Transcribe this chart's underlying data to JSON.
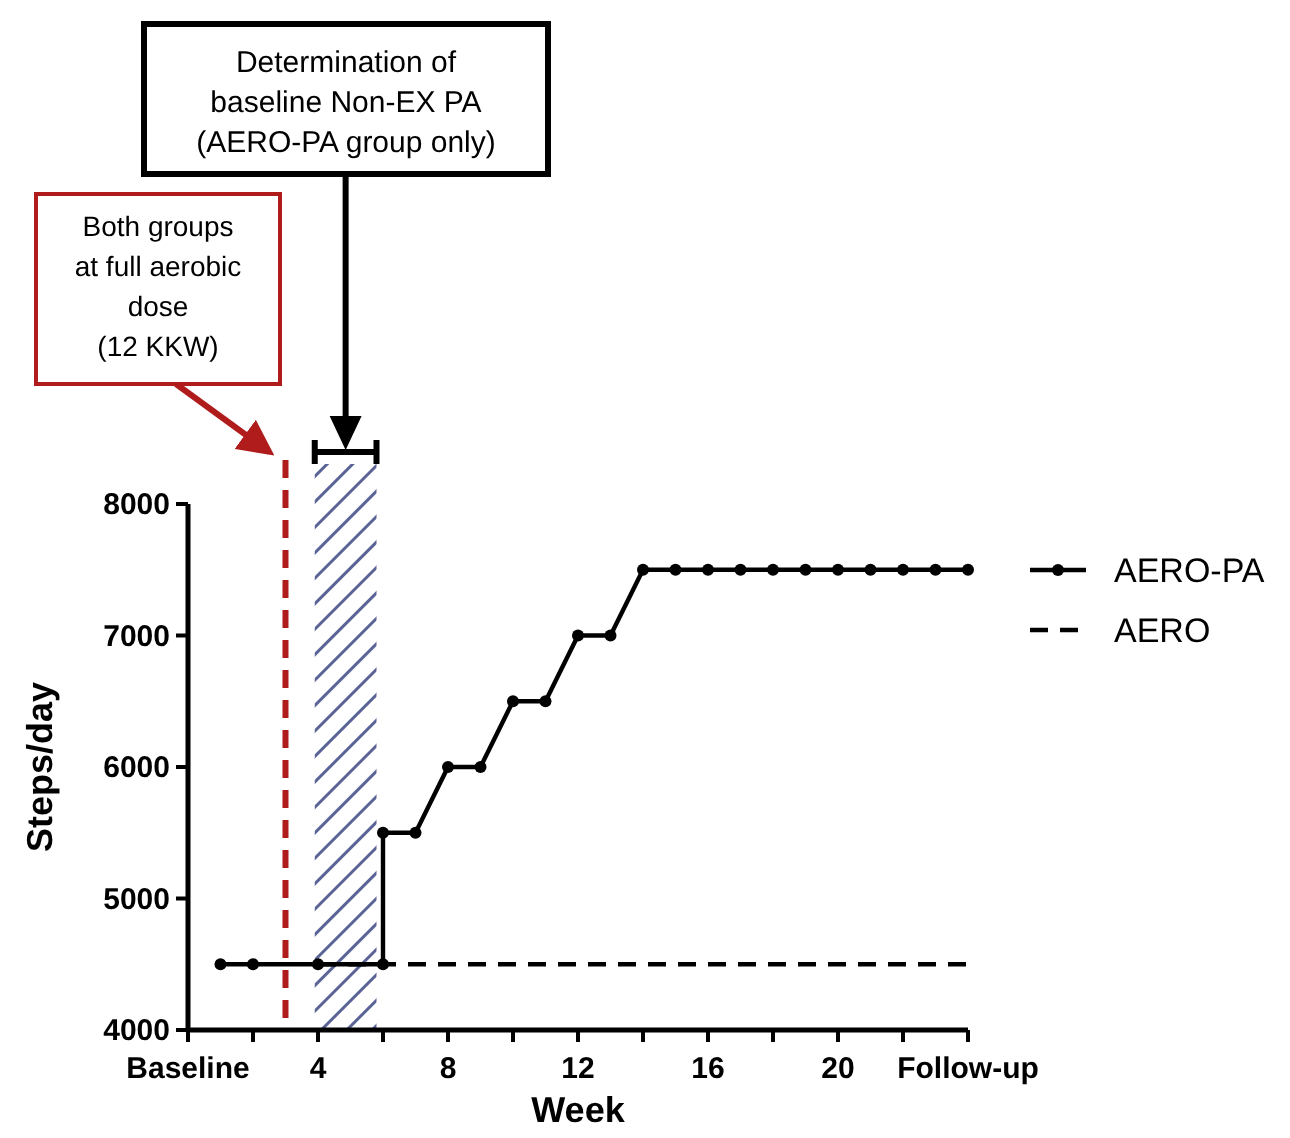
{
  "chart_data": {
    "type": "line",
    "xlabel": "Week",
    "ylabel": "Steps/day",
    "xlim": [
      0,
      24
    ],
    "xticks": [
      {
        "value": 0,
        "label": "Baseline"
      },
      {
        "value": 2,
        "label": null
      },
      4,
      {
        "value": 6,
        "label": null
      },
      8,
      {
        "value": 10,
        "label": null
      },
      12,
      {
        "value": 14,
        "label": null
      },
      16,
      {
        "value": 18,
        "label": null
      },
      20,
      {
        "value": 22,
        "label": null
      },
      {
        "value": 24,
        "label": "Follow-up"
      }
    ],
    "ylim": [
      4000,
      8000
    ],
    "yticks": [
      4000,
      5000,
      6000,
      7000,
      8000
    ],
    "series": [
      {
        "name": "AERO-PA",
        "color": "#000000",
        "marker": "circle",
        "line_style": "solid",
        "x": [
          1,
          2,
          4,
          6,
          6,
          7,
          8,
          9,
          10,
          11,
          12,
          13,
          14,
          15,
          16,
          17,
          18,
          19,
          20,
          21,
          22,
          23,
          24
        ],
        "values": [
          4500,
          4500,
          4500,
          4500,
          5500,
          5500,
          6000,
          6000,
          6500,
          6500,
          7000,
          7000,
          7500,
          7500,
          7500,
          7500,
          7500,
          7500,
          7500,
          7500,
          7500,
          7500,
          7500
        ]
      },
      {
        "name": "AERO",
        "color": "#000000",
        "marker": "none",
        "line_style": "dashed",
        "x": [
          4,
          24
        ],
        "values": [
          4500,
          4500
        ]
      }
    ],
    "ref_lines": [
      {
        "axis": "x",
        "value": 3,
        "color": "#b01c1c",
        "line_style": "dashed"
      }
    ],
    "bands": [
      {
        "axis": "x",
        "from": 3.9,
        "to": 5.8,
        "color": "#5a6496"
      }
    ],
    "annotations": [
      "Both groups\nat full aerobic\ndose\n(12 KKW)",
      "Determination of\nbaseline Non-EX PA\n(AERO-PA group only)"
    ],
    "legend": "right",
    "grid": false
  }
}
